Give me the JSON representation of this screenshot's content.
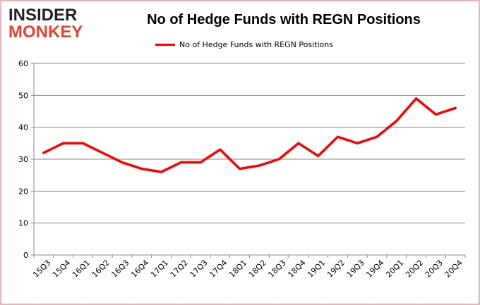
{
  "logo": {
    "line1": "INSIDER",
    "line2": "MONKEY"
  },
  "chart_data": {
    "type": "line",
    "title": "No of Hedge Funds with REGN Positions",
    "categories": [
      "15Q3",
      "15Q4",
      "16Q1",
      "16Q2",
      "16Q3",
      "16Q4",
      "17Q1",
      "17Q2",
      "17Q3",
      "17Q4",
      "18Q1",
      "18Q2",
      "18Q3",
      "18Q4",
      "19Q1",
      "19Q2",
      "19Q3",
      "19Q4",
      "20Q1",
      "20Q2",
      "20Q3",
      "20Q4"
    ],
    "series": [
      {
        "name": "No of Hedge Funds with REGN Positions",
        "values": [
          32,
          35,
          35,
          32,
          29,
          27,
          26,
          29,
          29,
          33,
          27,
          28,
          30,
          35,
          31,
          37,
          35,
          37,
          42,
          49,
          44,
          46
        ],
        "color": "#ff0000"
      }
    ],
    "ylim": [
      0,
      60
    ],
    "yticks": [
      0,
      10,
      20,
      30,
      40,
      50,
      60
    ],
    "grid": true,
    "legend": "top-center",
    "xlabel": "",
    "ylabel": ""
  }
}
